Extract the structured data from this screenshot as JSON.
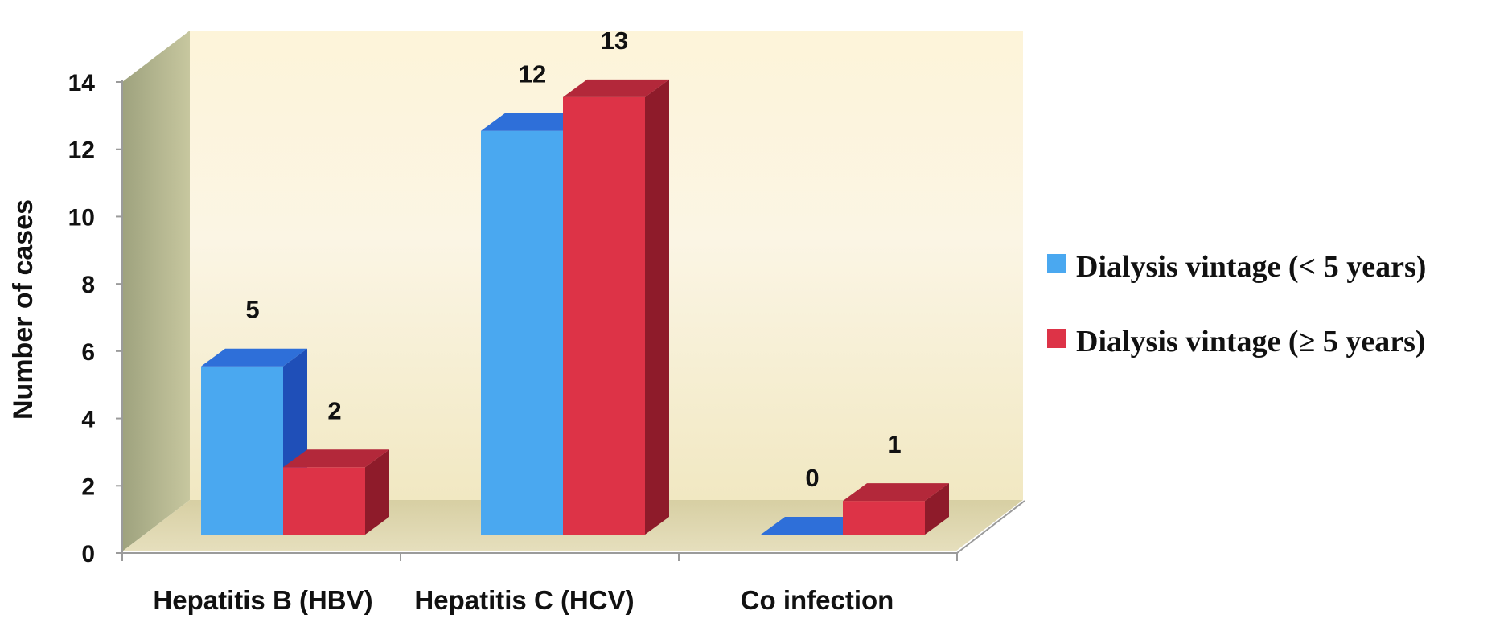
{
  "chart_data": {
    "type": "bar",
    "title": "",
    "xlabel": "",
    "ylabel": "Number of cases",
    "ylim": [
      0,
      14
    ],
    "yticks": [
      0,
      2,
      4,
      6,
      8,
      10,
      12,
      14
    ],
    "grid": false,
    "legend_position": "right",
    "categories": [
      "Hepatitis B (HBV)",
      "Hepatitis C (HCV)",
      "Co infection"
    ],
    "series": [
      {
        "name": "Dialysis vintage (< 5 years)",
        "values": [
          5,
          12,
          0
        ],
        "labels": [
          "5",
          "12",
          "0"
        ],
        "color": "#4aa8f0",
        "top_color": "#2e6fd9",
        "side_color": "#1f4fb8"
      },
      {
        "name": "Dialysis vintage (≥ 5  years)",
        "values": [
          2,
          13,
          1
        ],
        "labels": [
          "2",
          "13",
          "1"
        ],
        "color": "#dd3347",
        "top_color": "#b3283a",
        "side_color": "#8e1b2a"
      }
    ]
  }
}
